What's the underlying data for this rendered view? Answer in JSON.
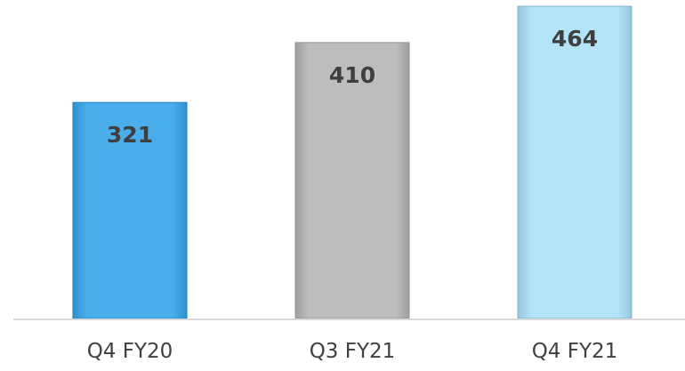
{
  "chart_data": {
    "type": "bar",
    "categories": [
      "Q4 FY20",
      "Q3 FY21",
      "Q4 FY21"
    ],
    "values": [
      321,
      410,
      464
    ],
    "data_labels": [
      "321",
      "410",
      "464"
    ],
    "bar_colors": [
      "#4aaeea",
      "#bdbdbd",
      "#b3e4f7"
    ],
    "title": "",
    "xlabel": "",
    "ylabel": "",
    "ylim": [
      0,
      464
    ],
    "grid": false,
    "legend": "none",
    "axis_color": "#d9d9d9",
    "label_color": "#404040"
  }
}
